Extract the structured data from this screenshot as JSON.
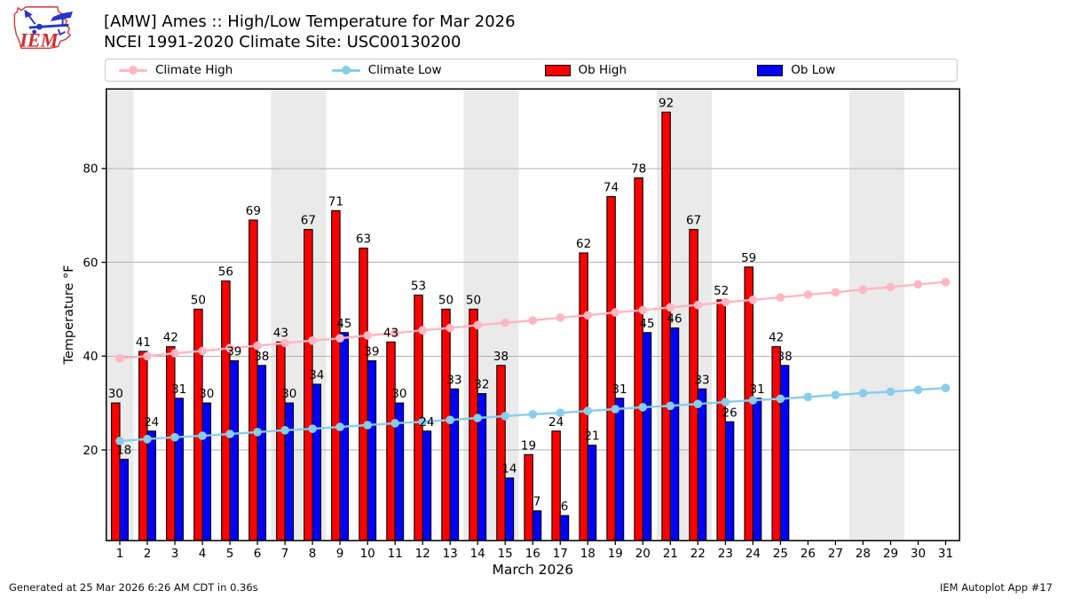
{
  "header": {
    "title_line1": "[AMW] Ames :: High/Low Temperature for Mar 2026",
    "title_line2": "NCEI 1991-2020 Climate Site: USC00130200",
    "logo_text": "IEM"
  },
  "legend": {
    "items": [
      {
        "label": "Climate High",
        "type": "line",
        "color": "#ffb6c1"
      },
      {
        "label": "Climate Low",
        "type": "line",
        "color": "#87ceeb"
      },
      {
        "label": "Ob High",
        "type": "patch",
        "color": "#ff0000"
      },
      {
        "label": "Ob Low",
        "type": "patch",
        "color": "#0000ff"
      }
    ]
  },
  "footer": {
    "left": "Generated at 25 Mar 2026 6:26 AM CDT in 0.36s",
    "right": "IEM Autoplot App #17"
  },
  "colors": {
    "ob_high": "#ff0000",
    "ob_low": "#0000ff",
    "climate_high": "#ffb6c1",
    "climate_low": "#87ceeb",
    "weekend_band": "#eaeaea",
    "gridline": "#b0b0b0",
    "bar_edge": "#000000"
  },
  "chart_data": {
    "type": "bar",
    "title": "[AMW] Ames :: High/Low Temperature for Mar 2026",
    "subtitle": "NCEI 1991-2020 Climate Site: USC00130200",
    "xlabel": "March 2026",
    "ylabel": "Temperature °F",
    "categories": [
      1,
      2,
      3,
      4,
      5,
      6,
      7,
      8,
      9,
      10,
      11,
      12,
      13,
      14,
      15,
      16,
      17,
      18,
      19,
      20,
      21,
      22,
      23,
      24,
      25,
      26,
      27,
      28,
      29,
      30,
      31
    ],
    "yticks": [
      20,
      40,
      60,
      80
    ],
    "ylim": [
      0.7,
      97.0
    ],
    "grid": "horizontal",
    "legend_position": "top",
    "weekend_shaded_days": [
      1,
      7,
      8,
      14,
      15,
      21,
      22,
      28,
      29
    ],
    "series": [
      {
        "name": "Ob High",
        "type": "bar",
        "color": "#ff0000",
        "values": [
          30,
          41,
          42,
          50,
          56,
          69,
          43,
          67,
          71,
          63,
          43,
          53,
          50,
          50,
          38,
          19,
          24,
          62,
          74,
          78,
          92,
          67,
          52,
          59,
          42
        ]
      },
      {
        "name": "Ob Low",
        "type": "bar",
        "color": "#0000ff",
        "values": [
          18,
          24,
          31,
          30,
          39,
          38,
          30,
          34,
          45,
          39,
          30,
          24,
          33,
          32,
          14,
          7,
          6,
          21,
          31,
          45,
          46,
          33,
          26,
          31,
          38
        ]
      },
      {
        "name": "Climate High",
        "type": "line",
        "color": "#ffb6c1",
        "values": [
          39.5,
          40.0,
          40.6,
          41.1,
          41.7,
          42.2,
          42.8,
          43.3,
          43.8,
          44.4,
          44.9,
          45.5,
          46.0,
          46.6,
          47.1,
          47.6,
          48.2,
          48.7,
          49.3,
          49.8,
          50.4,
          50.9,
          51.5,
          52.0,
          52.5,
          53.1,
          53.6,
          54.2,
          54.7,
          55.3,
          55.8
        ]
      },
      {
        "name": "Climate Low",
        "type": "line",
        "color": "#87ceeb",
        "values": [
          21.9,
          22.3,
          22.7,
          23.0,
          23.4,
          23.8,
          24.2,
          24.5,
          24.9,
          25.3,
          25.7,
          26.0,
          26.4,
          26.8,
          27.2,
          27.6,
          27.9,
          28.3,
          28.7,
          29.1,
          29.4,
          29.8,
          30.2,
          30.6,
          30.9,
          31.3,
          31.7,
          32.1,
          32.4,
          32.8,
          33.2
        ]
      }
    ]
  }
}
